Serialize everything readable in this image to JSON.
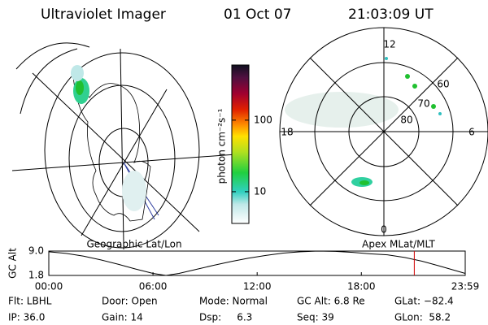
{
  "header": {
    "title": "Ultraviolet Imager",
    "date": "01 Oct 07",
    "time": "21:03:09 UT"
  },
  "colorbar": {
    "label": "photon cm⁻²s⁻¹",
    "log": true,
    "lim": [
      3.6,
      590
    ],
    "ticks": [
      10,
      100
    ]
  },
  "geo_map": {
    "label": "Geographic Lat/Lon"
  },
  "polar": {
    "label": "Apex MLat/MLT",
    "hour_labels": [
      "12",
      "6",
      "0",
      "18"
    ],
    "lat_labels": [
      "60",
      "70",
      "80"
    ]
  },
  "chart_data": {
    "type": "line",
    "ylabel": "GC Alt",
    "color": "#000000",
    "x": [
      0,
      1,
      2,
      3,
      4,
      5,
      6,
      6.75,
      7.5,
      8.5,
      9.5,
      10.5,
      11.5,
      12.5,
      13.5,
      14.5,
      15.5,
      16.5,
      17.5,
      18.5,
      19.5,
      20.5,
      21.5,
      22.5,
      23.983
    ],
    "values": [
      8.8,
      8.3,
      7.5,
      6.4,
      5.1,
      3.7,
      2.4,
      1.8,
      2.4,
      3.6,
      4.8,
      5.9,
      6.9,
      7.7,
      8.4,
      8.8,
      9.0,
      8.9,
      8.6,
      8.2,
      7.9,
      7.1,
      6.0,
      4.6,
      2.4
    ],
    "xlim": [
      0,
      23.983
    ],
    "ylim": [
      1.8,
      9.0
    ],
    "xticks": [
      {
        "value": 0,
        "label": "00:00"
      },
      {
        "value": 6,
        "label": "06:00"
      },
      {
        "value": 12,
        "label": "12:00"
      },
      {
        "value": 18,
        "label": "18:00"
      },
      {
        "value": 23.983,
        "label": "23:59"
      }
    ],
    "yticks": [
      {
        "value": 9.0,
        "label": "9.0"
      },
      {
        "value": 1.8,
        "label": "1.8"
      }
    ],
    "marker_x": 21.05,
    "marker_color": "#d00000"
  },
  "status": [
    [
      "Flt: LBHL",
      "Door: Open",
      "Mode: Normal",
      "GC Alt: 6.8 Re",
      "GLat: −82.4"
    ],
    [
      "IP: 36.0",
      "Gain: 14",
      "Dsp:     6.3",
      "Seq: 39",
      "GLon:  58.2"
    ]
  ]
}
